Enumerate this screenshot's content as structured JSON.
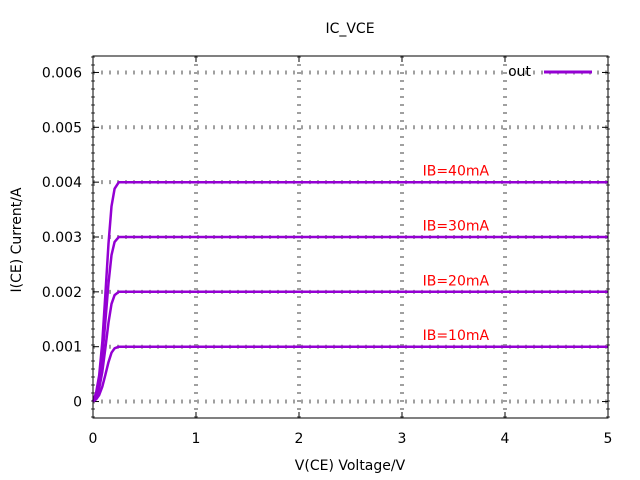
{
  "chart_data": {
    "type": "line",
    "title": "IC_VCE",
    "xlabel": "V(CE) Voltage/V",
    "ylabel": "I(CE) Current/A",
    "xlim": [
      0,
      5
    ],
    "ylim": [
      -0.0003,
      0.0063
    ],
    "x_ticks": [
      0,
      1,
      2,
      3,
      4,
      5
    ],
    "x_tick_labels": [
      "0",
      "1",
      "2",
      "3",
      "4",
      "5"
    ],
    "y_ticks": [
      0,
      0.001,
      0.002,
      0.003,
      0.004,
      0.005,
      0.006
    ],
    "y_tick_labels": [
      "0",
      "0.001",
      "0.002",
      "0.003",
      "0.004",
      "0.005",
      "0.006"
    ],
    "grid": true,
    "legend": {
      "position": "top-right",
      "entries": [
        "out"
      ]
    },
    "series": [
      {
        "name": "out",
        "color": "#9400d3",
        "curves": [
          {
            "x": [
              0,
              0.03,
              0.06,
              0.09,
              0.12,
              0.15,
              0.18,
              0.21,
              0.25,
              0.3,
              1,
              2,
              3,
              4,
              5
            ],
            "y": [
              0,
              4e-05,
              0.00012,
              0.00027,
              0.00049,
              0.00072,
              0.00089,
              0.00097,
              0.001,
              0.001,
              0.001,
              0.001,
              0.001,
              0.001,
              0.001
            ]
          },
          {
            "x": [
              0,
              0.03,
              0.06,
              0.09,
              0.12,
              0.15,
              0.18,
              0.21,
              0.25,
              0.3,
              1,
              2,
              3,
              4,
              5
            ],
            "y": [
              0,
              8e-05,
              0.00024,
              0.00054,
              0.00098,
              0.00144,
              0.00178,
              0.00194,
              0.002,
              0.002,
              0.002,
              0.002,
              0.002,
              0.002,
              0.002
            ]
          },
          {
            "x": [
              0,
              0.03,
              0.06,
              0.09,
              0.12,
              0.15,
              0.18,
              0.21,
              0.25,
              0.3,
              1,
              2,
              3,
              4,
              5
            ],
            "y": [
              0,
              0.00012,
              0.00036,
              0.00081,
              0.00147,
              0.00216,
              0.00267,
              0.00291,
              0.003,
              0.003,
              0.003,
              0.003,
              0.003,
              0.003,
              0.003
            ]
          },
          {
            "x": [
              0,
              0.03,
              0.06,
              0.09,
              0.12,
              0.15,
              0.18,
              0.21,
              0.25,
              0.3,
              1,
              2,
              3,
              4,
              5
            ],
            "y": [
              0,
              0.00016,
              0.00048,
              0.00108,
              0.00196,
              0.00288,
              0.00356,
              0.00388,
              0.004,
              0.004,
              0.004,
              0.004,
              0.004,
              0.004,
              0.004
            ]
          }
        ]
      }
    ],
    "annotations": [
      {
        "text": "IB=10mA",
        "x": 3.2,
        "y": 0.00112,
        "color": "#ff0000"
      },
      {
        "text": "IB=20mA",
        "x": 3.2,
        "y": 0.00212,
        "color": "#ff0000"
      },
      {
        "text": "IB=30mA",
        "x": 3.2,
        "y": 0.00312,
        "color": "#ff0000"
      },
      {
        "text": "IB=40mA",
        "x": 3.2,
        "y": 0.00412,
        "color": "#ff0000"
      }
    ],
    "grid_color": "#a0a0a0"
  }
}
